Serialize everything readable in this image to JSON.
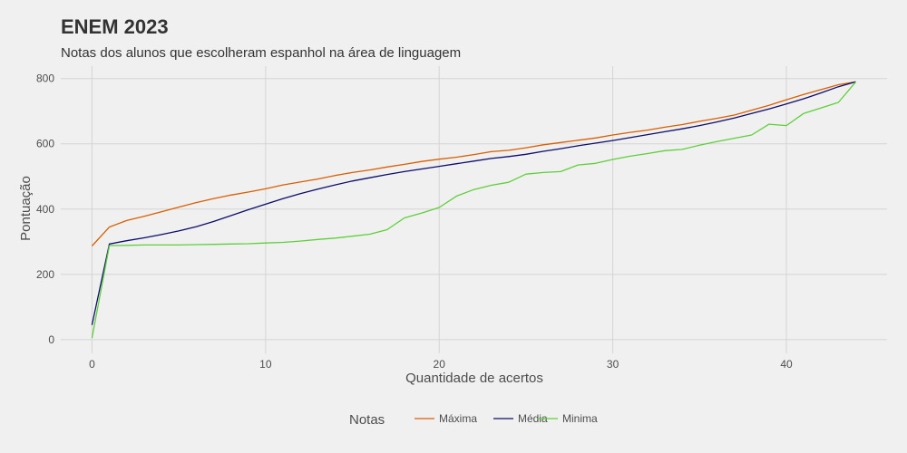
{
  "chart_data": {
    "type": "line",
    "title": "ENEM 2023",
    "subtitle": "Notas dos alunos que escolheram espanhol na área de linguagem",
    "xlabel": "Quantidade de acertos",
    "ylabel": "Pontuação",
    "xlim": [
      -1.8,
      45.8
    ],
    "ylim": [
      -42,
      838
    ],
    "x_ticks": [
      0,
      10,
      20,
      30,
      40
    ],
    "y_ticks": [
      0,
      200,
      400,
      600,
      800
    ],
    "grid": true,
    "legend": {
      "title": "Notas",
      "position": "bottom"
    },
    "x": [
      0,
      1,
      2,
      3,
      4,
      5,
      6,
      7,
      8,
      9,
      10,
      11,
      12,
      13,
      14,
      15,
      16,
      17,
      18,
      19,
      20,
      21,
      22,
      23,
      24,
      25,
      26,
      27,
      28,
      29,
      30,
      31,
      32,
      33,
      34,
      35,
      36,
      37,
      38,
      39,
      40,
      41,
      42,
      43,
      44
    ],
    "series": [
      {
        "name": "Máxima",
        "color": "#d95f02",
        "values": [
          287,
          345,
          365,
          378,
          392,
          406,
          420,
          432,
          443,
          452,
          462,
          474,
          483,
          492,
          503,
          512,
          520,
          529,
          537,
          546,
          553,
          559,
          567,
          576,
          580,
          588,
          597,
          604,
          611,
          618,
          627,
          635,
          642,
          651,
          659,
          669,
          678,
          688,
          703,
          718,
          735,
          751,
          766,
          781,
          790
        ]
      },
      {
        "name": "Média",
        "color": "#0d0d6b",
        "values": [
          45,
          293,
          303,
          312,
          322,
          333,
          346,
          362,
          380,
          398,
          415,
          432,
          447,
          461,
          474,
          486,
          496,
          506,
          515,
          523,
          531,
          539,
          547,
          555,
          561,
          568,
          577,
          585,
          594,
          602,
          610,
          619,
          628,
          637,
          646,
          656,
          667,
          679,
          693,
          707,
          722,
          738,
          756,
          775,
          790
        ]
      },
      {
        "name": "Minima",
        "color": "#5ecf3a",
        "values": [
          5,
          288,
          289,
          290,
          290,
          290,
          291,
          292,
          293,
          294,
          296,
          298,
          302,
          307,
          311,
          317,
          323,
          337,
          373,
          388,
          405,
          440,
          460,
          473,
          482,
          507,
          512,
          515,
          535,
          540,
          552,
          562,
          570,
          579,
          583,
          596,
          607,
          617,
          627,
          660,
          656,
          693,
          710,
          727,
          790
        ]
      }
    ]
  }
}
